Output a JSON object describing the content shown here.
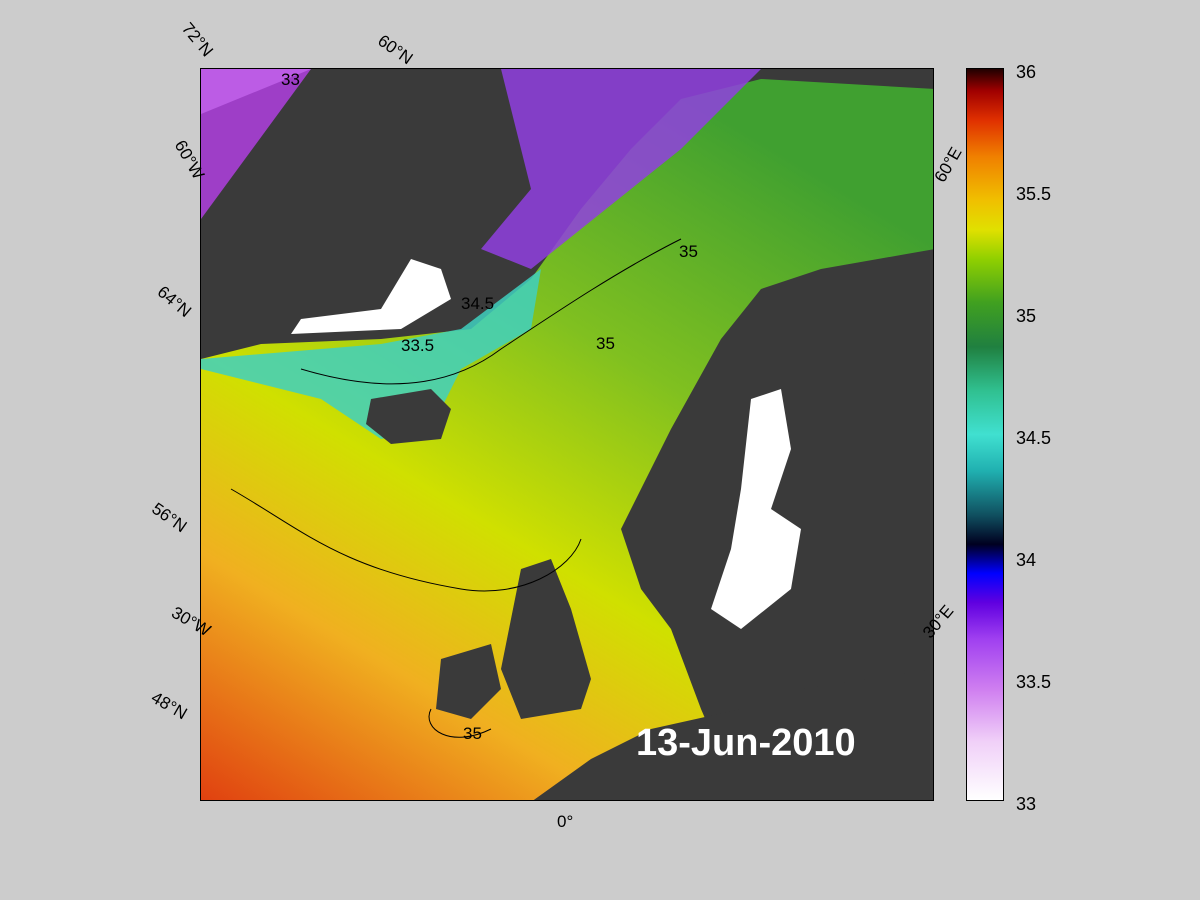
{
  "date": "13-Jun-2010",
  "colorbar": {
    "min": 33,
    "max": 36,
    "ticks": [
      "36",
      "35.5",
      "35",
      "34.5",
      "34",
      "33.5",
      "33"
    ]
  },
  "latitude_labels": [
    "72°N",
    "60°N",
    "64°N",
    "56°N",
    "48°N"
  ],
  "longitude_labels": [
    "60°W",
    "30°W",
    "0°",
    "30°E",
    "60°E"
  ],
  "contour_labels": [
    "33",
    "33.5",
    "34.5",
    "35"
  ],
  "colors": {
    "background": "#cccccc",
    "land": "#3a3a3a",
    "ice": "#ffffff",
    "date_text": "#ffffff"
  }
}
